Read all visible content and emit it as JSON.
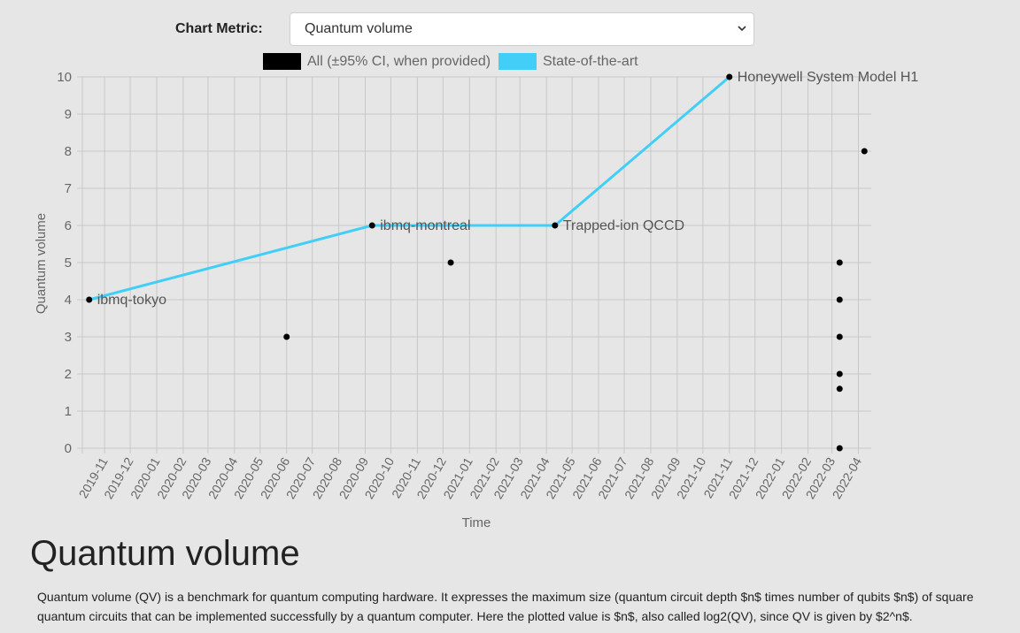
{
  "controls": {
    "metric_label": "Chart Metric:",
    "metric_selected": "Quantum volume",
    "chevron_icon": "chevron-down-icon"
  },
  "chart_data": {
    "type": "scatter",
    "xlabel": "Time",
    "ylabel": "Quantum volume",
    "ylim": [
      0,
      10
    ],
    "yticks": [
      0,
      1,
      2,
      3,
      4,
      5,
      6,
      7,
      8,
      9,
      10
    ],
    "xticks": [
      "2019-11",
      "2019-12",
      "2020-01",
      "2020-02",
      "2020-03",
      "2020-04",
      "2020-05",
      "2020-06",
      "2020-07",
      "2020-08",
      "2020-09",
      "2020-10",
      "2020-11",
      "2020-12",
      "2021-01",
      "2021-02",
      "2021-03",
      "2021-04",
      "2021-05",
      "2021-06",
      "2021-07",
      "2021-08",
      "2021-09",
      "2021-10",
      "2021-11",
      "2021-12",
      "2022-01",
      "2022-02",
      "2022-03",
      "2022-04"
    ],
    "xlim": [
      "2019-10-06",
      "2022-04-16"
    ],
    "grid": true,
    "legend_position": "top",
    "legend": [
      {
        "label": "All (±95% CI, when provided)",
        "color": "#000000"
      },
      {
        "label": "State-of-the-art",
        "color": "#41cef7"
      }
    ],
    "series": [
      {
        "name": "All (±95% CI, when provided)",
        "type": "scatter",
        "color": "#000000",
        "points": [
          {
            "x": "2019-10-14",
            "y": 4,
            "label": "ibmq-tokyo"
          },
          {
            "x": "2020-06-01",
            "y": 3,
            "label": ""
          },
          {
            "x": "2020-09-09",
            "y": 6,
            "label": "ibmq-montreal"
          },
          {
            "x": "2020-12-10",
            "y": 5,
            "label": ""
          },
          {
            "x": "2021-04-11",
            "y": 6,
            "label": "Trapped-ion QCCD"
          },
          {
            "x": "2021-11-01",
            "y": 10,
            "label": "Honeywell System Model H1"
          },
          {
            "x": "2022-03-10",
            "y": 5,
            "label": ""
          },
          {
            "x": "2022-03-10",
            "y": 4,
            "label": ""
          },
          {
            "x": "2022-03-10",
            "y": 3,
            "label": ""
          },
          {
            "x": "2022-03-10",
            "y": 2,
            "label": ""
          },
          {
            "x": "2022-03-10",
            "y": 1.6,
            "label": ""
          },
          {
            "x": "2022-03-10",
            "y": 0,
            "label": ""
          },
          {
            "x": "2022-04-08",
            "y": 8,
            "label": ""
          }
        ]
      },
      {
        "name": "State-of-the-art",
        "type": "line",
        "color": "#41cef7",
        "points": [
          {
            "x": "2019-10-14",
            "y": 4
          },
          {
            "x": "2020-09-09",
            "y": 6
          },
          {
            "x": "2021-04-11",
            "y": 6
          },
          {
            "x": "2021-11-01",
            "y": 10
          }
        ]
      }
    ]
  },
  "article": {
    "heading": "Quantum volume",
    "description": "Quantum volume (QV) is a benchmark for quantum computing hardware. It expresses the maximum size (quantum circuit depth $n$ times number of qubits $n$) of square quantum circuits that can be implemented successfully by a quantum computer. Here the plotted value is $n$, also called log2(QV), since QV is given by $2^n$."
  }
}
